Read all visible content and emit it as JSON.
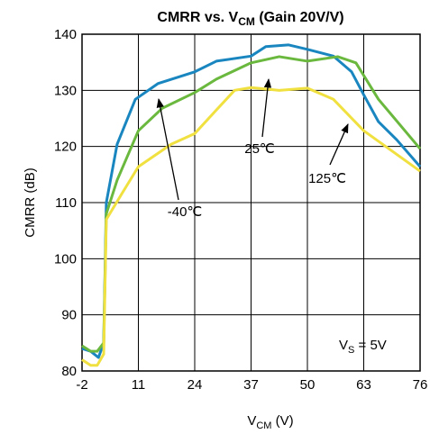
{
  "chart_data": {
    "type": "line",
    "title": [
      "CMRR vs. V",
      "CM",
      " (Gain 20V/V)"
    ],
    "x_label": [
      "V",
      "CM",
      " (V)"
    ],
    "y_label": "CMRR (dB)",
    "supply_note": [
      "V",
      "S",
      " = 5V"
    ],
    "annotations": [
      "-40℃",
      "25℃",
      "125℃"
    ],
    "xlim": [
      -2,
      76
    ],
    "ylim": [
      80,
      140
    ],
    "xticks": [
      -2,
      11,
      24,
      37,
      50,
      63,
      76
    ],
    "yticks": [
      80,
      90,
      100,
      110,
      120,
      130,
      140
    ],
    "grid": true,
    "series": [
      {
        "name": "-40℃",
        "color": "#1a86c0",
        "x": [
          -2,
          0,
          1.8,
          3,
          3.6,
          6.1,
          10.3,
          15.5,
          24,
          29,
          37,
          40.4,
          45.6,
          50,
          56,
          60.2,
          63,
          66.4,
          70.6,
          76
        ],
        "values": [
          84,
          83.5,
          82.4,
          85,
          110,
          120.4,
          128.4,
          131.2,
          133.3,
          135.2,
          136.1,
          137.8,
          138.1,
          137.3,
          136.1,
          133.3,
          129.2,
          124.4,
          121.2,
          116.4
        ]
      },
      {
        "name": "25℃",
        "color": "#6ab83e",
        "x": [
          -2,
          0,
          1.5,
          3,
          3.6,
          6.1,
          11,
          16.5,
          24,
          29,
          37,
          43.5,
          50,
          57,
          61.2,
          66.4,
          76
        ],
        "values": [
          84.5,
          83.5,
          83.5,
          85,
          108,
          114,
          122.8,
          126.8,
          129.6,
          132,
          134.9,
          136,
          135.2,
          136,
          134.9,
          128.4,
          119.6
        ]
      },
      {
        "name": "125℃",
        "color": "#f0e040",
        "x": [
          -2,
          0,
          1.5,
          3,
          3.6,
          7.2,
          11,
          18.6,
          24,
          29,
          33.2,
          37,
          43.5,
          50,
          56,
          63,
          76
        ],
        "values": [
          82,
          81,
          81,
          83,
          107,
          111.6,
          116.4,
          120.4,
          122.3,
          126.5,
          130,
          130.5,
          130,
          130.4,
          128.4,
          122.8,
          115.6
        ]
      }
    ]
  }
}
